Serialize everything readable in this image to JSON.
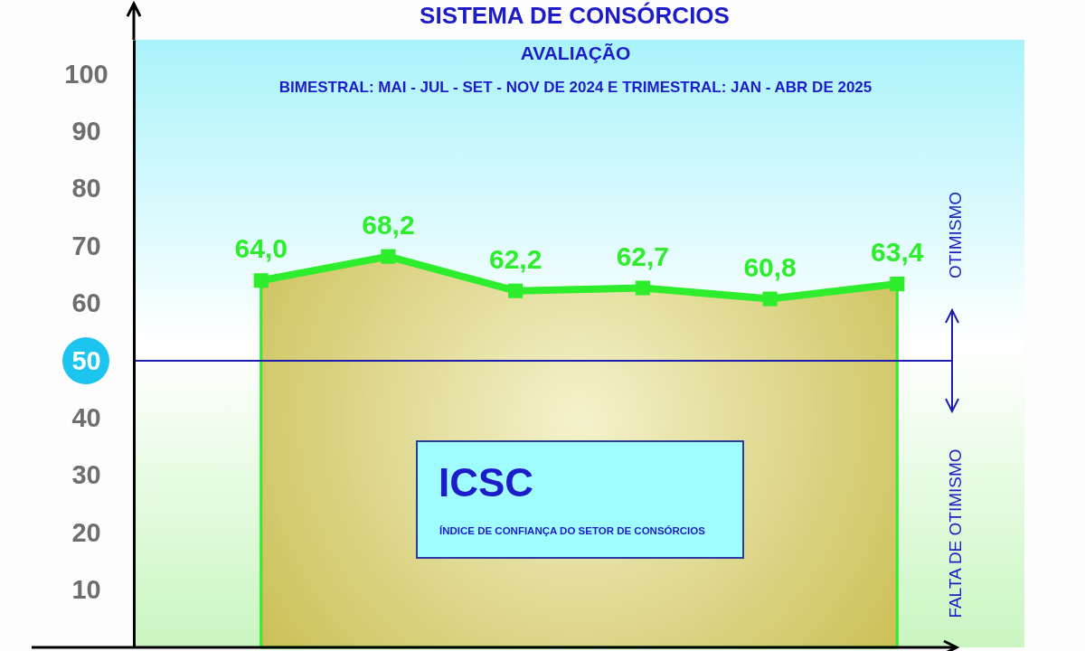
{
  "chart_data": {
    "type": "area",
    "title": "SISTEMA DE CONSÓRCIOS",
    "subtitle": [
      "AVALIAÇÃO",
      "BIMESTRAL: MAI - JUL - SET - NOV DE 2024 E TRIMESTRAL: JAN - ABR DE 2025"
    ],
    "categories": [
      null,
      null,
      null,
      null,
      null,
      null
    ],
    "values": [
      64.0,
      68.2,
      62.2,
      62.7,
      60.8,
      63.4
    ],
    "value_labels": [
      "64,0",
      "68,2",
      "62,2",
      "62,7",
      "60,8",
      "63,4"
    ],
    "color": "#2ded2d",
    "marker": "square",
    "line_style": "solid",
    "ylim": [
      0,
      106
    ],
    "yticks": [
      10,
      20,
      30,
      40,
      50,
      60,
      70,
      80,
      90,
      100
    ],
    "tick_labels": "y",
    "ref_lines": [
      {
        "axis": "y",
        "value": 50,
        "color": "#1c1cb0"
      }
    ],
    "annotations": [
      "OTIMISMO",
      "FALTA DE OTIMISMO",
      "ICSC",
      "ÍNDICE DE CONFIANÇA DO SETOR DE CONSÓRCIOS"
    ]
  }
}
